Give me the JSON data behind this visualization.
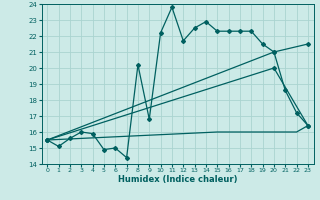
{
  "xlabel": "Humidex (Indice chaleur)",
  "bg_color": "#cceae7",
  "grid_color": "#aad4d0",
  "line_color": "#006060",
  "xlim": [
    -0.5,
    23.5
  ],
  "ylim": [
    14,
    24
  ],
  "xticks": [
    0,
    1,
    2,
    3,
    4,
    5,
    6,
    7,
    8,
    9,
    10,
    11,
    12,
    13,
    14,
    15,
    16,
    17,
    18,
    19,
    20,
    21,
    22,
    23
  ],
  "yticks": [
    14,
    15,
    16,
    17,
    18,
    19,
    20,
    21,
    22,
    23,
    24
  ],
  "series1_x": [
    0,
    1,
    2,
    3,
    4,
    5,
    6,
    7,
    8,
    9,
    10,
    11,
    12,
    13,
    14,
    15,
    16,
    17,
    18,
    19,
    20,
    21,
    22,
    23
  ],
  "series1_y": [
    15.5,
    15.1,
    15.6,
    16.0,
    15.9,
    14.9,
    15.0,
    14.4,
    20.2,
    16.8,
    22.2,
    23.8,
    21.7,
    22.5,
    22.9,
    22.3,
    22.3,
    22.3,
    22.3,
    21.5,
    21.0,
    18.6,
    17.2,
    16.4
  ],
  "series2_x": [
    0,
    20,
    23
  ],
  "series2_y": [
    15.5,
    21.0,
    21.5
  ],
  "series3_x": [
    0,
    20,
    23
  ],
  "series3_y": [
    15.5,
    20.0,
    16.4
  ],
  "flat_x": [
    0,
    15,
    16,
    17,
    18,
    19,
    20,
    21,
    22,
    23
  ],
  "flat_y": [
    15.5,
    16.0,
    16.0,
    16.0,
    16.0,
    16.0,
    16.0,
    16.0,
    16.0,
    16.4
  ]
}
